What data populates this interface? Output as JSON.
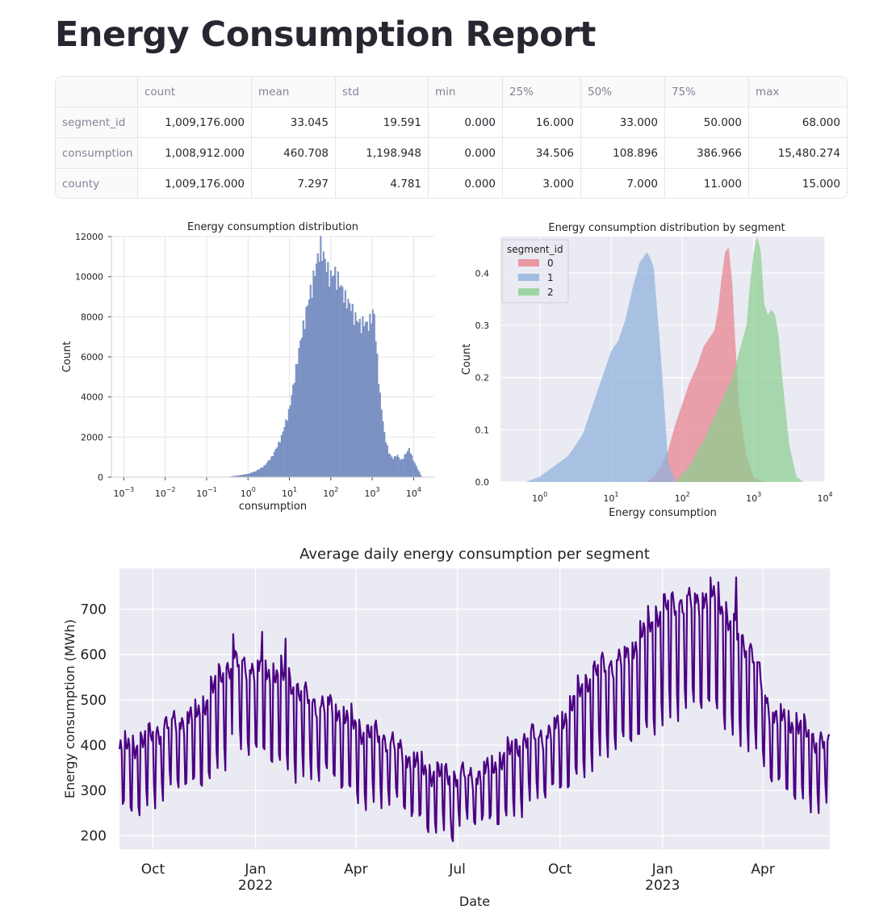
{
  "title": "Energy Consumption Report",
  "table": {
    "columns": [
      "",
      "count",
      "mean",
      "std",
      "min",
      "25%",
      "50%",
      "75%",
      "max"
    ],
    "rows": [
      {
        "label": "segment_id",
        "values": [
          "1,009,176.000",
          "33.045",
          "19.591",
          "0.000",
          "16.000",
          "33.000",
          "50.000",
          "68.000"
        ]
      },
      {
        "label": "consumption",
        "values": [
          "1,008,912.000",
          "460.708",
          "1,198.948",
          "0.000",
          "34.506",
          "108.896",
          "386.966",
          "15,480.274"
        ]
      },
      {
        "label": "county",
        "values": [
          "1,009,176.000",
          "7.297",
          "4.781",
          "0.000",
          "3.000",
          "7.000",
          "11.000",
          "15.000"
        ]
      }
    ]
  },
  "chart_data": [
    {
      "type": "bar",
      "title": "Energy consumption distribution",
      "xlabel": "consumption",
      "ylabel": "Count",
      "xscale": "log",
      "ylim": [
        0,
        12000
      ],
      "yticks": [
        0,
        2000,
        4000,
        6000,
        8000,
        10000,
        12000
      ],
      "xticks": [
        "10^-3",
        "10^-2",
        "10^-1",
        "10^0",
        "10^1",
        "10^2",
        "10^3",
        "10^4"
      ],
      "grid": true,
      "color": "#7f95c5",
      "log10_x": [
        -0.5,
        0,
        0.2,
        0.4,
        0.6,
        0.8,
        1.0,
        1.1,
        1.2,
        1.3,
        1.4,
        1.5,
        1.6,
        1.7,
        1.75,
        1.8,
        1.9,
        2.0,
        2.1,
        2.2,
        2.3,
        2.4,
        2.5,
        2.6,
        2.7,
        2.8,
        2.9,
        3.0,
        3.05,
        3.1,
        3.2,
        3.3,
        3.4,
        3.5,
        3.6,
        3.7,
        3.8,
        3.9,
        4.0,
        4.1,
        4.2
      ],
      "counts": [
        0,
        150,
        300,
        550,
        1050,
        1900,
        3300,
        4500,
        5800,
        7000,
        8000,
        9000,
        9900,
        10800,
        11400,
        11000,
        10300,
        9800,
        10000,
        9600,
        9000,
        8600,
        8300,
        7800,
        7500,
        7600,
        7400,
        8000,
        8000,
        6400,
        3800,
        2100,
        1200,
        900,
        1100,
        800,
        1100,
        1400,
        800,
        400,
        0
      ]
    },
    {
      "type": "area",
      "title": "Energy consumption distribution by segment",
      "xlabel": "Energy consumption",
      "ylabel": "Count",
      "xscale": "log",
      "ylim": [
        0,
        0.47
      ],
      "yticks": [
        0.0,
        0.1,
        0.2,
        0.3,
        0.4
      ],
      "xticks": [
        "10^0",
        "10^1",
        "10^2",
        "10^3",
        "10^4"
      ],
      "legend_title": "segment_id",
      "legend_position": "top-left",
      "grid": true,
      "series": [
        {
          "name": "0",
          "color": "#e8828d",
          "log10_x": [
            1.5,
            1.6,
            1.7,
            1.8,
            1.9,
            2.0,
            2.1,
            2.2,
            2.3,
            2.4,
            2.45,
            2.5,
            2.55,
            2.6,
            2.65,
            2.7,
            2.75,
            2.8,
            2.9,
            3.0,
            3.1,
            3.2
          ],
          "y": [
            0,
            0.01,
            0.03,
            0.06,
            0.11,
            0.15,
            0.19,
            0.22,
            0.26,
            0.28,
            0.29,
            0.33,
            0.39,
            0.44,
            0.45,
            0.38,
            0.25,
            0.14,
            0.05,
            0.01,
            0.002,
            0
          ]
        },
        {
          "name": "1",
          "color": "#8fb2dc",
          "log10_x": [
            -0.2,
            0,
            0.2,
            0.4,
            0.6,
            0.8,
            0.9,
            1.0,
            1.1,
            1.2,
            1.3,
            1.4,
            1.5,
            1.55,
            1.6,
            1.7,
            1.8,
            1.9
          ],
          "y": [
            0,
            0.01,
            0.03,
            0.05,
            0.09,
            0.17,
            0.21,
            0.25,
            0.27,
            0.31,
            0.37,
            0.42,
            0.44,
            0.43,
            0.41,
            0.24,
            0.04,
            0
          ],
          "_": ""
        },
        {
          "name": "2",
          "color": "#8ccf8f",
          "log10_x": [
            1.9,
            2.1,
            2.3,
            2.5,
            2.6,
            2.7,
            2.8,
            2.9,
            2.95,
            3.0,
            3.05,
            3.1,
            3.15,
            3.2,
            3.25,
            3.3,
            3.35,
            3.4,
            3.5,
            3.6,
            3.7
          ],
          "y": [
            0,
            0.03,
            0.08,
            0.14,
            0.17,
            0.2,
            0.25,
            0.3,
            0.38,
            0.44,
            0.47,
            0.44,
            0.34,
            0.32,
            0.33,
            0.32,
            0.28,
            0.2,
            0.07,
            0.01,
            0
          ]
        }
      ]
    },
    {
      "type": "line",
      "title": "Average daily energy consumption per segment",
      "xlabel": "Date",
      "ylabel": "Energy consumption (MWh)",
      "ylim": [
        170,
        790
      ],
      "yticks": [
        200,
        300,
        400,
        500,
        600,
        700
      ],
      "xticks": [
        {
          "date": "2021-10-01",
          "label": "Oct",
          "sub": ""
        },
        {
          "date": "2022-01-01",
          "label": "Jan",
          "sub": "2022"
        },
        {
          "date": "2022-04-01",
          "label": "Apr",
          "sub": ""
        },
        {
          "date": "2022-07-01",
          "label": "Jul",
          "sub": ""
        },
        {
          "date": "2022-10-01",
          "label": "Oct",
          "sub": ""
        },
        {
          "date": "2023-01-01",
          "label": "Jan",
          "sub": "2023"
        },
        {
          "date": "2023-04-01",
          "label": "Apr",
          "sub": ""
        }
      ],
      "xlim": [
        "2021-09-01",
        "2023-05-31"
      ],
      "color": "#4b0082",
      "trend_anchors": [
        {
          "date": "2021-09-01",
          "value": 350
        },
        {
          "date": "2021-11-01",
          "value": 410
        },
        {
          "date": "2021-12-15",
          "value": 520
        },
        {
          "date": "2022-01-15",
          "value": 500
        },
        {
          "date": "2022-03-01",
          "value": 440
        },
        {
          "date": "2022-04-15",
          "value": 380
        },
        {
          "date": "2022-06-15",
          "value": 300
        },
        {
          "date": "2022-07-15",
          "value": 300
        },
        {
          "date": "2022-09-15",
          "value": 380
        },
        {
          "date": "2022-11-15",
          "value": 520
        },
        {
          "date": "2023-01-15",
          "value": 640
        },
        {
          "date": "2023-02-15",
          "value": 650
        },
        {
          "date": "2023-03-15",
          "value": 560
        },
        {
          "date": "2023-04-15",
          "value": 410
        },
        {
          "date": "2023-05-31",
          "value": 360
        }
      ],
      "weekly_amplitude": 120,
      "marked_points": [
        {
          "date": "2021-12-12",
          "value": 645
        },
        {
          "date": "2022-01-07",
          "value": 650
        },
        {
          "date": "2022-01-28",
          "value": 635
        },
        {
          "date": "2022-06-27",
          "value": 188
        },
        {
          "date": "2023-03-08",
          "value": 770
        }
      ]
    }
  ]
}
